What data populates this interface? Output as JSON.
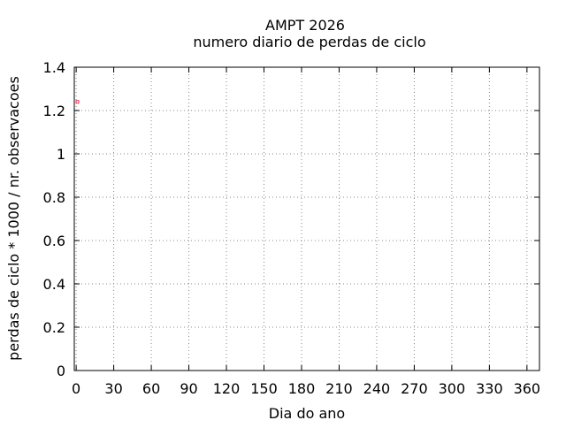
{
  "chart_data": {
    "type": "scatter",
    "title": "AMPT 2026",
    "subtitle": "numero diario de perdas de ciclo",
    "xlabel": "Dia do ano",
    "ylabel": "perdas de ciclo * 1000 / nr. observacoes",
    "xlim": [
      -1.5,
      370
    ],
    "ylim": [
      0,
      1.4
    ],
    "xticks": [
      0,
      30,
      60,
      90,
      120,
      150,
      180,
      210,
      240,
      270,
      300,
      330,
      360
    ],
    "yticks": [
      0,
      0.2,
      0.4,
      0.6,
      0.8,
      1,
      1.2,
      1.4
    ],
    "ytick_labels": [
      "0",
      "0.2",
      "0.4",
      "0.6",
      "0.8",
      "1",
      "1.2",
      "1.4"
    ],
    "grid": true,
    "points": [
      {
        "x": 1,
        "y": 1.24
      }
    ],
    "point_color": "#e8324f"
  }
}
